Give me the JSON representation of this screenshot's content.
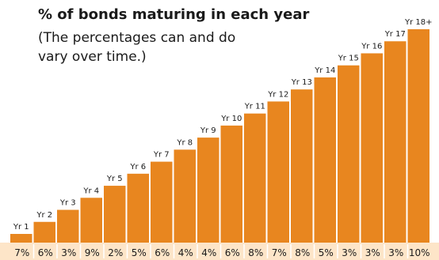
{
  "chart_data": {
    "type": "bar",
    "title": "% of bonds maturing in each year",
    "subtitle": "(The percentages can and do vary over time.)",
    "categories": [
      "Yr 1",
      "Yr 2",
      "Yr 3",
      "Yr 4",
      "Yr 5",
      "Yr 6",
      "Yr 7",
      "Yr 8",
      "Yr 9",
      "Yr 10",
      "Yr 11",
      "Yr 12",
      "Yr 13",
      "Yr 14",
      "Yr 15",
      "Yr 16",
      "Yr 17",
      "Yr 18+"
    ],
    "percent_labels": [
      "7%",
      "6%",
      "3%",
      "9%",
      "2%",
      "5%",
      "6%",
      "4%",
      "4%",
      "6%",
      "8%",
      "7%",
      "8%",
      "5%",
      "3%",
      "3%",
      "3%",
      "10%"
    ],
    "xlabel": "",
    "ylabel": "",
    "bar_color": "#e8861f",
    "strip_color": "#fde5c8"
  }
}
